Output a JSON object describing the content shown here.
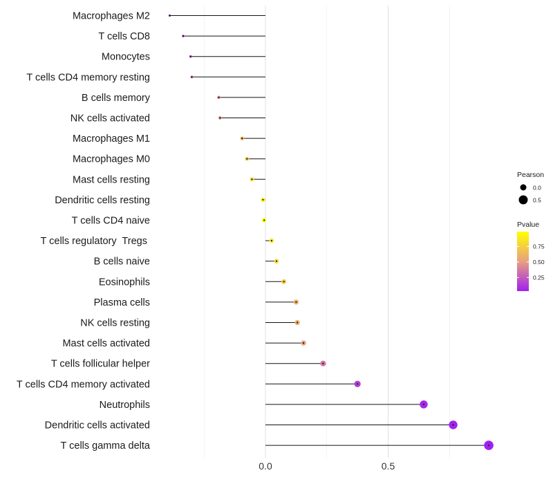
{
  "chart_data": {
    "type": "lollipop",
    "title": "",
    "xlabel": "",
    "ylabel": "",
    "xlim": [
      -0.25,
      0.95
    ],
    "xticks": [
      0.0,
      0.5
    ],
    "xtick_labels": [
      "0.0",
      "0.5"
    ],
    "minor_gridlines": [
      -0.25,
      0.25,
      0.75
    ],
    "grid": true,
    "categories": [
      "Macrophages M2",
      "T cells CD8",
      "Monocytes",
      "T cells CD4 memory resting",
      "B cells memory",
      "NK cells activated",
      "Macrophages M1",
      "Macrophages M0",
      "Mast cells resting",
      "Dendritic cells resting",
      "T cells CD4 naive",
      "T cells regulatory  Tregs ",
      "B cells naive",
      "Eosinophils",
      "Plasma cells",
      "NK cells resting",
      "Mast cells activated",
      "T cells follicular helper",
      "T cells CD4 memory activated",
      "Neutrophils",
      "Dendritic cells activated",
      "T cells gamma delta"
    ],
    "pearson": [
      -0.39,
      -0.335,
      -0.305,
      -0.3,
      -0.19,
      -0.185,
      -0.095,
      -0.075,
      -0.055,
      -0.01,
      -0.005,
      0.025,
      0.045,
      0.075,
      0.125,
      0.13,
      0.155,
      0.235,
      0.375,
      0.645,
      0.765,
      0.91
    ],
    "pvalue": [
      0.05,
      0.2,
      0.25,
      0.25,
      0.45,
      0.45,
      0.62,
      0.72,
      0.8,
      0.98,
      0.99,
      0.9,
      0.82,
      0.72,
      0.6,
      0.58,
      0.52,
      0.35,
      0.15,
      0.06,
      0.04,
      0.03
    ],
    "legend": {
      "placement": "right",
      "size_title": "Pearson",
      "size_entries": [
        {
          "label": "0.0",
          "value": 0.0
        },
        {
          "label": "0.5",
          "value": 0.5
        }
      ],
      "color_title": "Pvalue",
      "color_ticks": [
        {
          "label": "0.75",
          "value": 0.75
        },
        {
          "label": "0.50",
          "value": 0.5
        },
        {
          "label": "0.25",
          "value": 0.25
        }
      ],
      "color_range": [
        0.03,
        0.99
      ],
      "color_low": "#a020f0",
      "color_mid": "#e8a080",
      "color_high": "#ffff00"
    }
  }
}
